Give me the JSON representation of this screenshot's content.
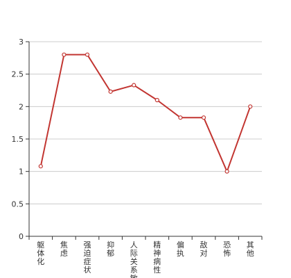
{
  "chart_data": {
    "type": "line",
    "categories": [
      "躯体化",
      "焦虑",
      "强迫症状",
      "抑郁",
      "人际关系敏感",
      "精神病性",
      "偏执",
      "敌对",
      "恐怖",
      "其他"
    ],
    "series": [
      {
        "values": [
          1.08,
          2.8,
          2.8,
          2.23,
          2.33,
          2.1,
          1.83,
          1.83,
          1.0,
          2.0
        ]
      }
    ],
    "ylim": [
      0,
      3
    ],
    "yticks": [
      0,
      0.5,
      1,
      1.5,
      2,
      2.5,
      3
    ],
    "grid": true,
    "colors": {
      "line": "#c23531",
      "grid": "#cccccc",
      "axis": "#333333",
      "marker_fill": "#ffffff"
    }
  }
}
